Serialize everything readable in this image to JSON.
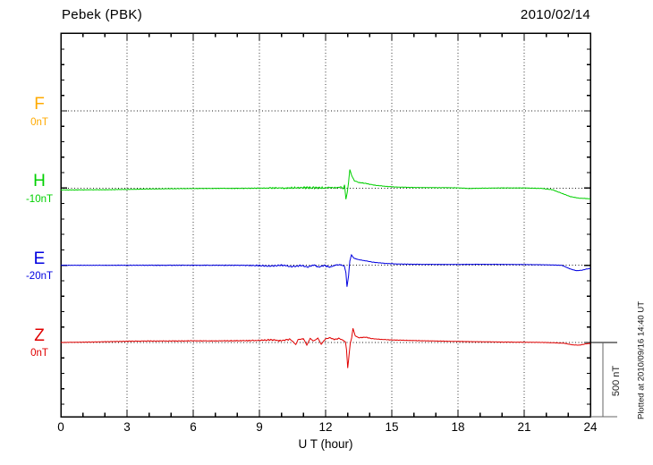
{
  "header": {
    "title": "Pebek (PBK)",
    "date": "2010/02/14"
  },
  "x_axis": {
    "label": "U T (hour)",
    "tick_labels": [
      "0",
      "3",
      "6",
      "9",
      "12",
      "15",
      "18",
      "21",
      "24"
    ],
    "tick_hours": [
      0,
      3,
      6,
      9,
      12,
      15,
      18,
      21,
      24
    ],
    "grid_hours": [
      3,
      6,
      9,
      12,
      15,
      18,
      21
    ],
    "min_hour": 0,
    "max_hour": 24,
    "minor_step_hours": 1
  },
  "scale_bar": {
    "label": "500 nT",
    "nT": 500
  },
  "footer_note": "Plotted at 2010/09/16 14:40 UT",
  "colors": {
    "frame": "#000000",
    "grid_dots": "#3a3a3a",
    "baseline_dots": "#1a1a1a",
    "scale_bar": "#666666",
    "F": "#ffaa00",
    "H": "#00d000",
    "E": "#0000e0",
    "Z": "#e00000"
  },
  "chart_data": {
    "type": "line",
    "title": "Pebek (PBK) magnetogram",
    "date": "2010/02/14",
    "xlabel": "U T (hour)",
    "x_range": [
      0,
      24
    ],
    "y_units": "nT",
    "grid": "dotted, every 3 hours vertical; dotted baseline per channel",
    "legend_position": "channel letters on left margin",
    "scale_reference": {
      "label": "500 nT",
      "nT": 500
    },
    "series": [
      {
        "name": "F",
        "offset_label": "0nT",
        "color": "#ffaa00",
        "data_present": false,
        "points": []
      },
      {
        "name": "H",
        "offset_label": "-10nT",
        "color": "#00d000",
        "data_present": true,
        "points": [
          [
            0,
            -13,
            2
          ],
          [
            1,
            -12,
            2
          ],
          [
            2,
            -11,
            2
          ],
          [
            3,
            -9,
            2
          ],
          [
            4,
            -6,
            2
          ],
          [
            5,
            -4,
            2
          ],
          [
            6,
            -3,
            2
          ],
          [
            7,
            -2,
            2.5
          ],
          [
            8,
            -2,
            3
          ],
          [
            9,
            -1,
            4
          ],
          [
            9.6,
            1,
            6
          ],
          [
            10.2,
            0,
            7
          ],
          [
            10.8,
            2,
            8
          ],
          [
            11.3,
            3,
            9
          ],
          [
            11.8,
            2,
            8
          ],
          [
            12.2,
            4,
            6
          ],
          [
            12.5,
            3,
            5
          ],
          [
            12.7,
            8,
            3
          ],
          [
            12.8,
            -5,
            0
          ],
          [
            12.86,
            22,
            0
          ],
          [
            12.92,
            -75,
            0
          ],
          [
            12.98,
            -30,
            0
          ],
          [
            13.04,
            40,
            0
          ],
          [
            13.1,
            125,
            0
          ],
          [
            13.18,
            85,
            0
          ],
          [
            13.3,
            50,
            2
          ],
          [
            13.5,
            38,
            3
          ],
          [
            13.8,
            32,
            3
          ],
          [
            14.2,
            20,
            2
          ],
          [
            14.7,
            12,
            2
          ],
          [
            15.2,
            7,
            2
          ],
          [
            16,
            4,
            2
          ],
          [
            17,
            3,
            2
          ],
          [
            18,
            2,
            2
          ],
          [
            18.5,
            -3,
            2
          ],
          [
            19,
            -1,
            2
          ],
          [
            20,
            1,
            2
          ],
          [
            21,
            1,
            2
          ],
          [
            21.8,
            -2,
            2
          ],
          [
            22.3,
            -12,
            2
          ],
          [
            22.7,
            -35,
            2
          ],
          [
            23.1,
            -58,
            2
          ],
          [
            23.5,
            -68,
            2
          ],
          [
            24,
            -72,
            2
          ]
        ]
      },
      {
        "name": "E",
        "offset_label": "-20nT",
        "color": "#0000e0",
        "data_present": true,
        "points": [
          [
            0,
            0,
            2
          ],
          [
            1,
            0,
            2
          ],
          [
            2,
            0,
            2
          ],
          [
            3,
            0,
            2.5
          ],
          [
            4,
            0,
            2.5
          ],
          [
            5,
            0,
            3
          ],
          [
            6,
            0,
            3
          ],
          [
            7,
            0,
            3
          ],
          [
            8,
            0,
            3.5
          ],
          [
            9,
            -2,
            5
          ],
          [
            9.5,
            -5,
            6
          ],
          [
            10,
            1,
            6
          ],
          [
            10.5,
            -9,
            7
          ],
          [
            10.9,
            -1,
            7
          ],
          [
            11.2,
            -13,
            4
          ],
          [
            11.45,
            3,
            7
          ],
          [
            11.7,
            -12,
            5
          ],
          [
            11.95,
            -1,
            6
          ],
          [
            12.2,
            -13,
            4
          ],
          [
            12.45,
            1,
            5
          ],
          [
            12.7,
            3,
            4
          ],
          [
            12.85,
            -6,
            0
          ],
          [
            12.92,
            -50,
            0
          ],
          [
            12.97,
            -145,
            0
          ],
          [
            13.04,
            -70,
            0
          ],
          [
            13.1,
            30,
            0
          ],
          [
            13.17,
            70,
            0
          ],
          [
            13.28,
            48,
            2
          ],
          [
            13.5,
            38,
            2
          ],
          [
            13.8,
            30,
            2
          ],
          [
            14.2,
            20,
            2
          ],
          [
            14.7,
            13,
            2
          ],
          [
            15.2,
            9,
            2
          ],
          [
            16,
            7,
            2
          ],
          [
            17,
            6,
            1.5
          ],
          [
            18,
            6,
            1.5
          ],
          [
            19,
            7,
            1.5
          ],
          [
            20,
            6,
            1.5
          ],
          [
            21,
            5,
            1.5
          ],
          [
            22,
            3,
            1.5
          ],
          [
            22.7,
            0,
            1.5
          ],
          [
            23.1,
            -25,
            1.5
          ],
          [
            23.35,
            -36,
            1.5
          ],
          [
            23.6,
            -34,
            1.5
          ],
          [
            23.8,
            -26,
            1.5
          ],
          [
            24,
            -22,
            1.5
          ]
        ]
      },
      {
        "name": "Z",
        "offset_label": "0nT",
        "color": "#e00000",
        "data_present": true,
        "points": [
          [
            0,
            0,
            1.5
          ],
          [
            1,
            2,
            2
          ],
          [
            2,
            5,
            2
          ],
          [
            3,
            8,
            2.5
          ],
          [
            4,
            10,
            2.5
          ],
          [
            5,
            10,
            3
          ],
          [
            6,
            11,
            3
          ],
          [
            7,
            11,
            3
          ],
          [
            8,
            12,
            4
          ],
          [
            9,
            14,
            5
          ],
          [
            9.5,
            18,
            6
          ],
          [
            10,
            12,
            7
          ],
          [
            10.4,
            22,
            6
          ],
          [
            10.65,
            -14,
            0
          ],
          [
            10.75,
            20,
            0
          ],
          [
            11,
            25,
            5
          ],
          [
            11.15,
            -18,
            0
          ],
          [
            11.3,
            28,
            0
          ],
          [
            11.45,
            8,
            6
          ],
          [
            11.65,
            30,
            0
          ],
          [
            11.8,
            -12,
            0
          ],
          [
            12,
            25,
            5
          ],
          [
            12.2,
            31,
            4
          ],
          [
            12.4,
            20,
            5
          ],
          [
            12.6,
            28,
            4
          ],
          [
            12.8,
            14,
            3
          ],
          [
            12.9,
            4,
            0
          ],
          [
            12.95,
            -50,
            0
          ],
          [
            13,
            -172,
            0
          ],
          [
            13.06,
            -90,
            0
          ],
          [
            13.12,
            -5,
            0
          ],
          [
            13.18,
            30,
            0
          ],
          [
            13.24,
            95,
            0
          ],
          [
            13.34,
            45,
            0
          ],
          [
            13.5,
            32,
            3
          ],
          [
            13.8,
            36,
            3
          ],
          [
            14.1,
            26,
            2
          ],
          [
            14.5,
            21,
            2
          ],
          [
            15,
            17,
            2
          ],
          [
            16,
            13,
            2
          ],
          [
            17,
            10,
            2
          ],
          [
            18,
            7,
            1.5
          ],
          [
            19,
            5,
            1.5
          ],
          [
            20,
            3,
            1.5
          ],
          [
            21,
            2,
            1.5
          ],
          [
            22,
            0,
            1.5
          ],
          [
            22.8,
            -5,
            1.5
          ],
          [
            23.2,
            -16,
            1.5
          ],
          [
            23.5,
            -18,
            1.5
          ],
          [
            23.8,
            -9,
            1.5
          ],
          [
            24,
            -6,
            1.5
          ]
        ]
      }
    ]
  }
}
